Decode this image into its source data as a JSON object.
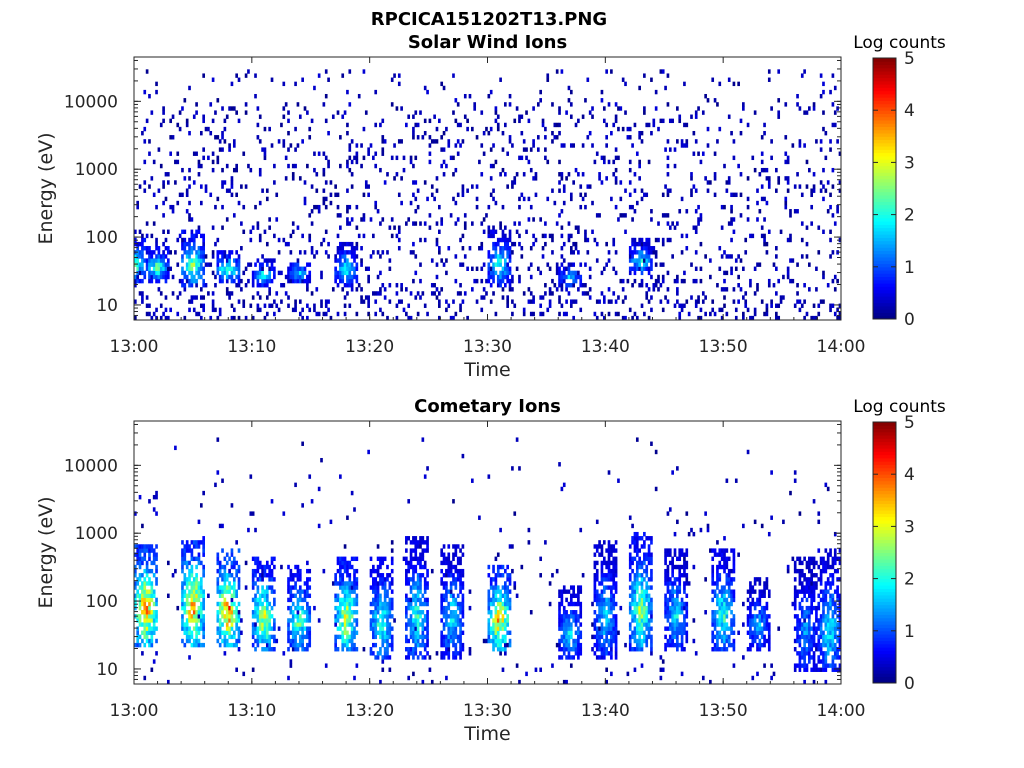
{
  "figure_title": "RPCICA151202T13.PNG",
  "chart_data": [
    {
      "type": "heatmap",
      "title": "Solar Wind Ions",
      "xlabel": "Time",
      "ylabel": "Energy (eV)",
      "x_ticks": [
        "13:00",
        "13:10",
        "13:20",
        "13:30",
        "13:40",
        "13:50",
        "14:00"
      ],
      "xlim": [
        "13:00",
        "14:00"
      ],
      "y_ticks": [
        "10",
        "100",
        "1000",
        "10000"
      ],
      "ylim": [
        6,
        45000
      ],
      "yscale": "log",
      "colorbar": {
        "label": "Log counts",
        "ticks": [
          "0",
          "1",
          "2",
          "3",
          "4",
          "5"
        ],
        "range": [
          0,
          5
        ],
        "colormap": "jet"
      },
      "bursts": [
        {
          "t": "13:00",
          "e_low": 25,
          "e_high": 90,
          "peak_log_counts": 2.6
        },
        {
          "t": "13:02",
          "e_low": 25,
          "e_high": 70,
          "peak_log_counts": 2.3
        },
        {
          "t": "13:05",
          "e_low": 22,
          "e_high": 110,
          "peak_log_counts": 2.6
        },
        {
          "t": "13:08",
          "e_low": 25,
          "e_high": 60,
          "peak_log_counts": 2.4
        },
        {
          "t": "13:11",
          "e_low": 22,
          "e_high": 45,
          "peak_log_counts": 1.8
        },
        {
          "t": "13:14",
          "e_low": 25,
          "e_high": 40,
          "peak_log_counts": 1.6
        },
        {
          "t": "13:18",
          "e_low": 22,
          "e_high": 80,
          "peak_log_counts": 1.9
        },
        {
          "t": "13:31",
          "e_low": 22,
          "e_high": 120,
          "peak_log_counts": 2.0
        },
        {
          "t": "13:37",
          "e_low": 20,
          "e_high": 40,
          "peak_log_counts": 1.6
        },
        {
          "t": "13:43",
          "e_low": 30,
          "e_high": 90,
          "peak_log_counts": 1.9
        }
      ],
      "background": {
        "e_low": 6,
        "e_high": 30000,
        "log_counts": 0.1
      }
    },
    {
      "type": "heatmap",
      "title": "Cometary Ions",
      "xlabel": "Time",
      "ylabel": "Energy (eV)",
      "x_ticks": [
        "13:00",
        "13:10",
        "13:20",
        "13:30",
        "13:40",
        "13:50",
        "14:00"
      ],
      "xlim": [
        "13:00",
        "14:00"
      ],
      "y_ticks": [
        "10",
        "100",
        "1000",
        "10000"
      ],
      "ylim": [
        6,
        45000
      ],
      "yscale": "log",
      "colorbar": {
        "label": "Log counts",
        "ticks": [
          "0",
          "1",
          "2",
          "3",
          "4",
          "5"
        ],
        "range": [
          0,
          5
        ],
        "colormap": "jet"
      },
      "bursts": [
        {
          "t": "13:01",
          "e_low": 25,
          "e_high": 600,
          "peak_log_counts": 3.8
        },
        {
          "t": "13:05",
          "e_low": 25,
          "e_high": 800,
          "peak_log_counts": 3.6
        },
        {
          "t": "13:08",
          "e_low": 25,
          "e_high": 500,
          "peak_log_counts": 3.8
        },
        {
          "t": "13:11",
          "e_low": 20,
          "e_high": 400,
          "peak_log_counts": 2.9
        },
        {
          "t": "13:14",
          "e_low": 20,
          "e_high": 300,
          "peak_log_counts": 2.4
        },
        {
          "t": "13:18",
          "e_low": 20,
          "e_high": 400,
          "peak_log_counts": 3.0
        },
        {
          "t": "13:21",
          "e_low": 15,
          "e_high": 400,
          "peak_log_counts": 2.2
        },
        {
          "t": "13:24",
          "e_low": 15,
          "e_high": 800,
          "peak_log_counts": 2.0
        },
        {
          "t": "13:27",
          "e_low": 15,
          "e_high": 600,
          "peak_log_counts": 1.8
        },
        {
          "t": "13:31",
          "e_low": 20,
          "e_high": 300,
          "peak_log_counts": 3.4
        },
        {
          "t": "13:37",
          "e_low": 15,
          "e_high": 150,
          "peak_log_counts": 1.8
        },
        {
          "t": "13:40",
          "e_low": 15,
          "e_high": 700,
          "peak_log_counts": 1.7
        },
        {
          "t": "13:43",
          "e_low": 20,
          "e_high": 900,
          "peak_log_counts": 2.6
        },
        {
          "t": "13:46",
          "e_low": 20,
          "e_high": 500,
          "peak_log_counts": 1.8
        },
        {
          "t": "13:50",
          "e_low": 20,
          "e_high": 500,
          "peak_log_counts": 2.2
        },
        {
          "t": "13:53",
          "e_low": 20,
          "e_high": 200,
          "peak_log_counts": 1.5
        },
        {
          "t": "13:57",
          "e_low": 10,
          "e_high": 400,
          "peak_log_counts": 1.4
        },
        {
          "t": "13:59",
          "e_low": 10,
          "e_high": 500,
          "peak_log_counts": 1.9
        }
      ],
      "background": {
        "e_low": 6,
        "e_high": 25000,
        "log_counts": 0.02
      }
    }
  ]
}
